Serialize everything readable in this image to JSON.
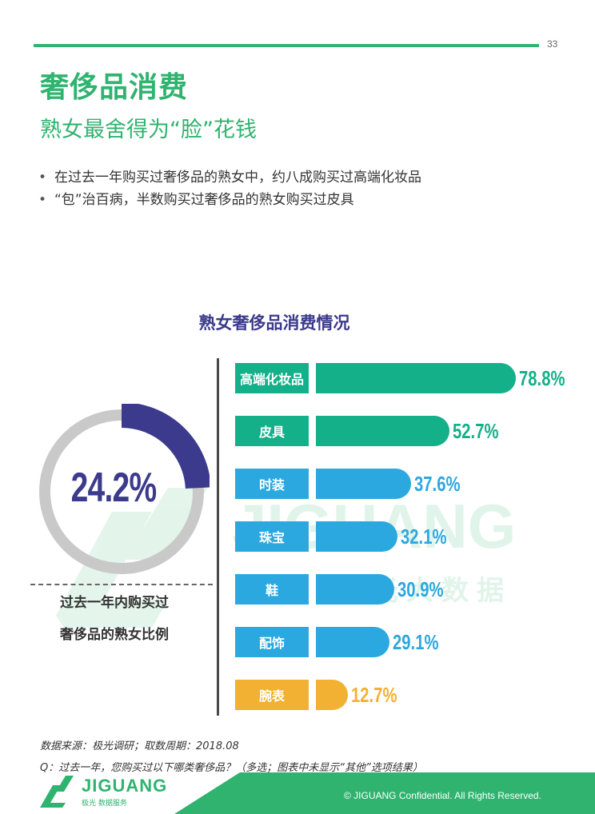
{
  "page_number": "33",
  "title": "奢侈品消费",
  "subtitle": "熟女最舍得为“脸”花钱",
  "bullets": [
    "在过去一年购买过奢侈品的熟女中，约八成购买过高端化妆品",
    "“包”治百病，半数购买过奢侈品的熟女购买过皮具"
  ],
  "watermark": {
    "brand": "JIGUANG",
    "sub": "极光大数据"
  },
  "donut": {
    "value_label": "24.2%",
    "fraction": 0.242,
    "caption_line1": "过去一年内购买过",
    "caption_line2": "奢侈品的熟女比例",
    "colors": {
      "filled": "#3b3a8c",
      "rest": "#c9c9c9"
    }
  },
  "chart_data": {
    "type": "bar",
    "orientation": "horizontal",
    "title": "熟女奢侈品消费情况",
    "categories": [
      "高端化妆品",
      "皮具",
      "时装",
      "珠宝",
      "鞋",
      "配饰",
      "腕表"
    ],
    "values": [
      78.8,
      52.7,
      37.6,
      32.1,
      30.9,
      29.1,
      12.7
    ],
    "value_labels": [
      "78.8%",
      "52.7%",
      "37.6%",
      "32.1%",
      "30.9%",
      "29.1%",
      "12.7%"
    ],
    "unit": "%",
    "colors": [
      "#13b08a",
      "#13b08a",
      "#2ba8e0",
      "#2ba8e0",
      "#2ba8e0",
      "#2ba8e0",
      "#f2b132"
    ],
    "xlim": [
      0,
      100
    ]
  },
  "footer": {
    "source": "数据来源：极光调研；取数周期：2018.08",
    "question": "Q：过去一年，您购买过以下哪类奢侈品？（多选；图表中未显示“其他”选项结果）",
    "copyright": "© JIGUANG Confidential. All Rights Reserved.",
    "logo_text": "JIGUANG",
    "logo_sub": "极光 数据服务",
    "band_color": "#2fb36f"
  }
}
